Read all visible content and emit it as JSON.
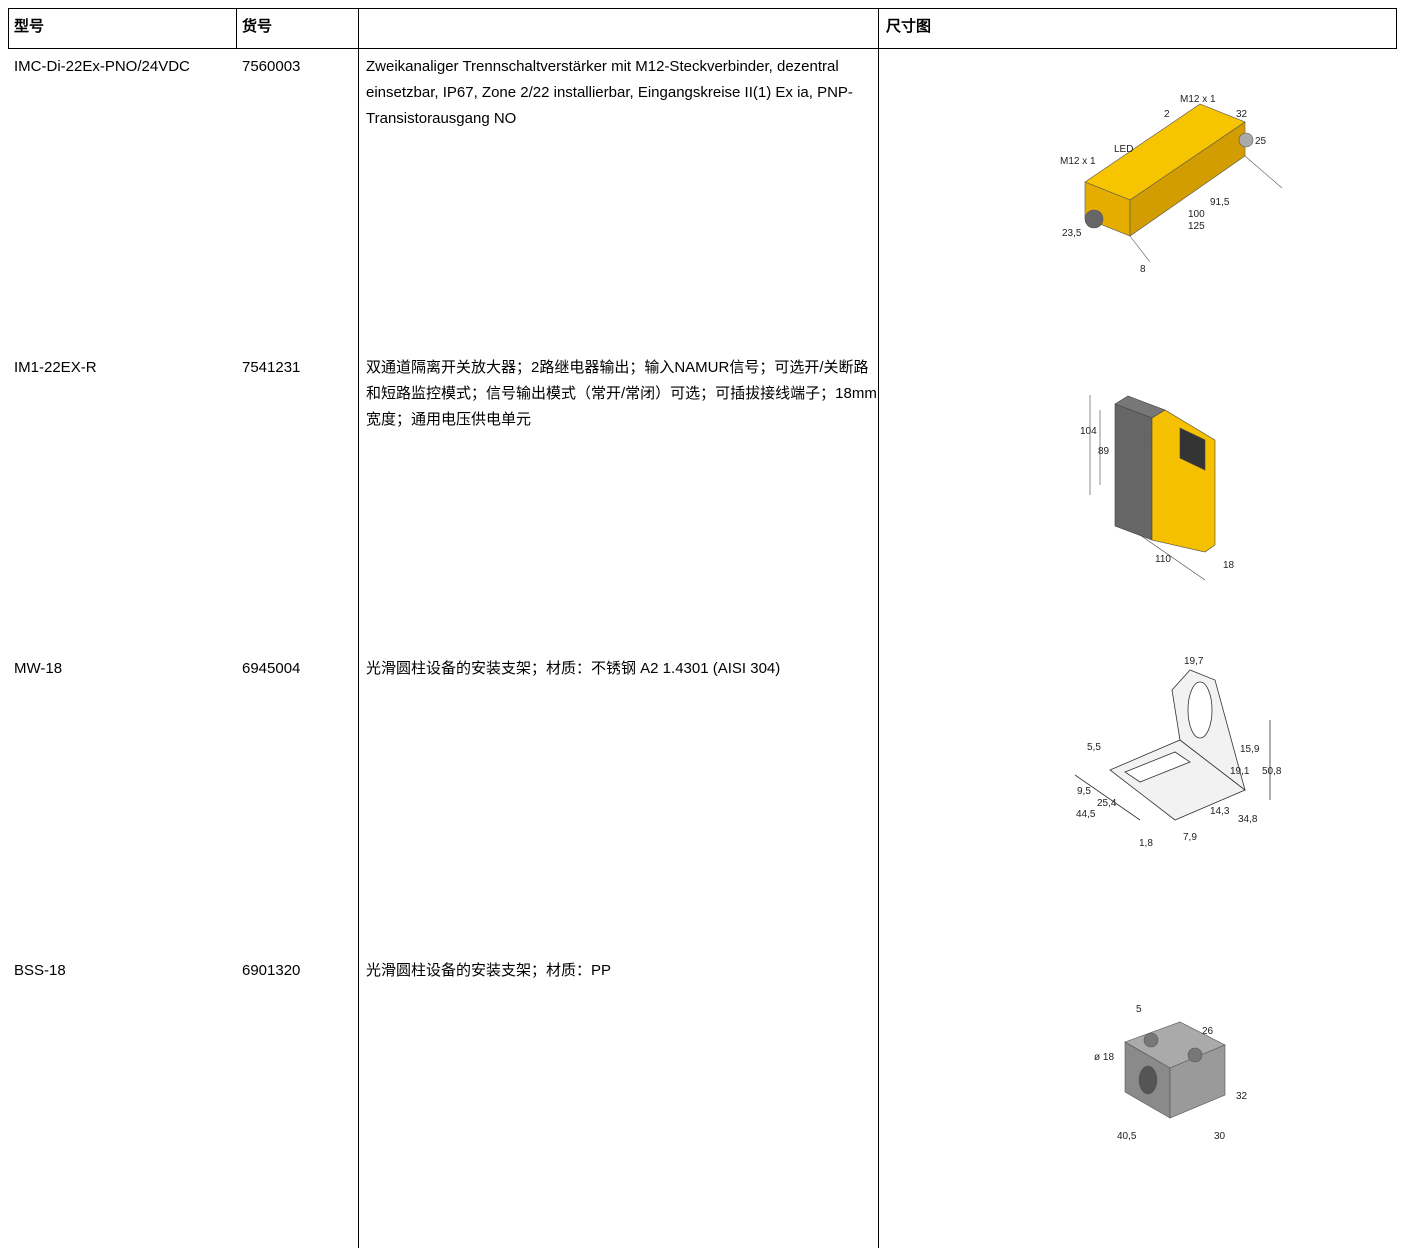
{
  "table": {
    "header": {
      "model": "型号",
      "part_no": "货号",
      "drawing": "尺寸图"
    },
    "rows": [
      {
        "model": "IMC-Di-22Ex-PNO/24VDC",
        "part_no": "7560003",
        "description": "Zweikanaliger Trennschaltverstärker mit M12-Steckverbinder, dezentral einsetzbar, IP67, Zone 2/22 installierbar, Eingangskreise II(1) Ex ia, PNP-Transistorausgang NO",
        "drawing_labels": [
          "M12 x 1",
          "2",
          "32",
          "25",
          "LED",
          "M12 x 1",
          "91,5",
          "100",
          "125",
          "23,5",
          "8"
        ]
      },
      {
        "model": "IM1-22EX-R",
        "part_no": "7541231",
        "description": "双通道隔离开关放大器；2路继电器输出；输入NAMUR信号；可选开/关断路和短路监控模式；信号输出模式（常开/常闭）可选；可插拔接线端子；18mm宽度；通用电压供电单元",
        "drawing_labels": [
          "104",
          "89",
          "110",
          "18"
        ]
      },
      {
        "model": "MW-18",
        "part_no": "6945004",
        "description": "光滑圆柱设备的安装支架；材质：不锈钢 A2 1.4301 (AISI 304)",
        "drawing_labels": [
          "19,7",
          "5,5",
          "15,9",
          "9,5",
          "19,1",
          "50,8",
          "25,4",
          "14,3",
          "44,5",
          "34,8",
          "1,8",
          "7,9"
        ]
      },
      {
        "model": "BSS-18",
        "part_no": "6901320",
        "description": "光滑圆柱设备的安装支架；材质：PP",
        "drawing_labels": [
          "5",
          "26",
          "ø 18",
          "32",
          "40,5",
          "30"
        ]
      }
    ]
  }
}
